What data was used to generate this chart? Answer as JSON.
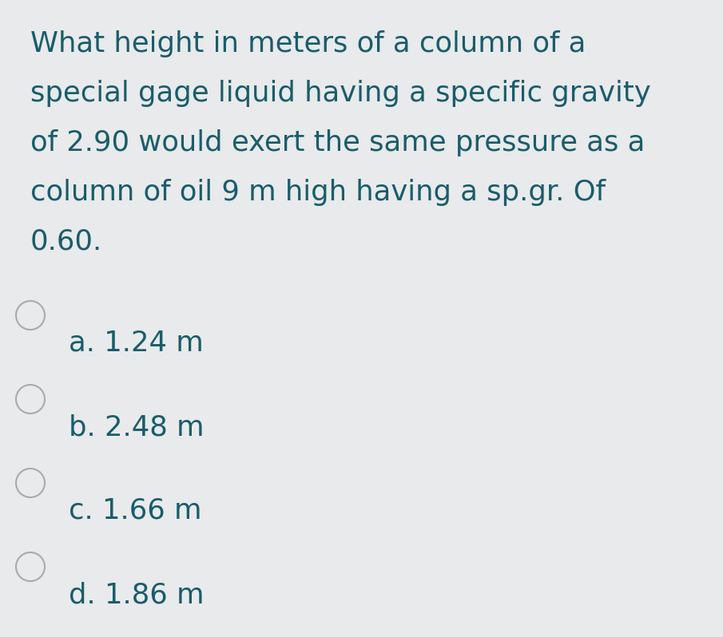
{
  "background_color": "#e8eaeb",
  "text_color": "#1a5c6b",
  "circle_color": "#aaaaaa",
  "question_lines": [
    "What height in meters of a column of a",
    "special gage liquid having a specific gravity",
    "of 2.90 would exert the same pressure as a",
    "column of oil 9 m high having a sp.gr. Of",
    "0.60."
  ],
  "options": [
    "a. 1.24 m",
    "b. 2.48 m",
    "c. 1.66 m",
    "d. 1.86 m"
  ],
  "question_fontsize": 25.5,
  "option_fontsize": 25.5,
  "fig_width": 9.05,
  "fig_height": 7.98,
  "dpi": 100
}
